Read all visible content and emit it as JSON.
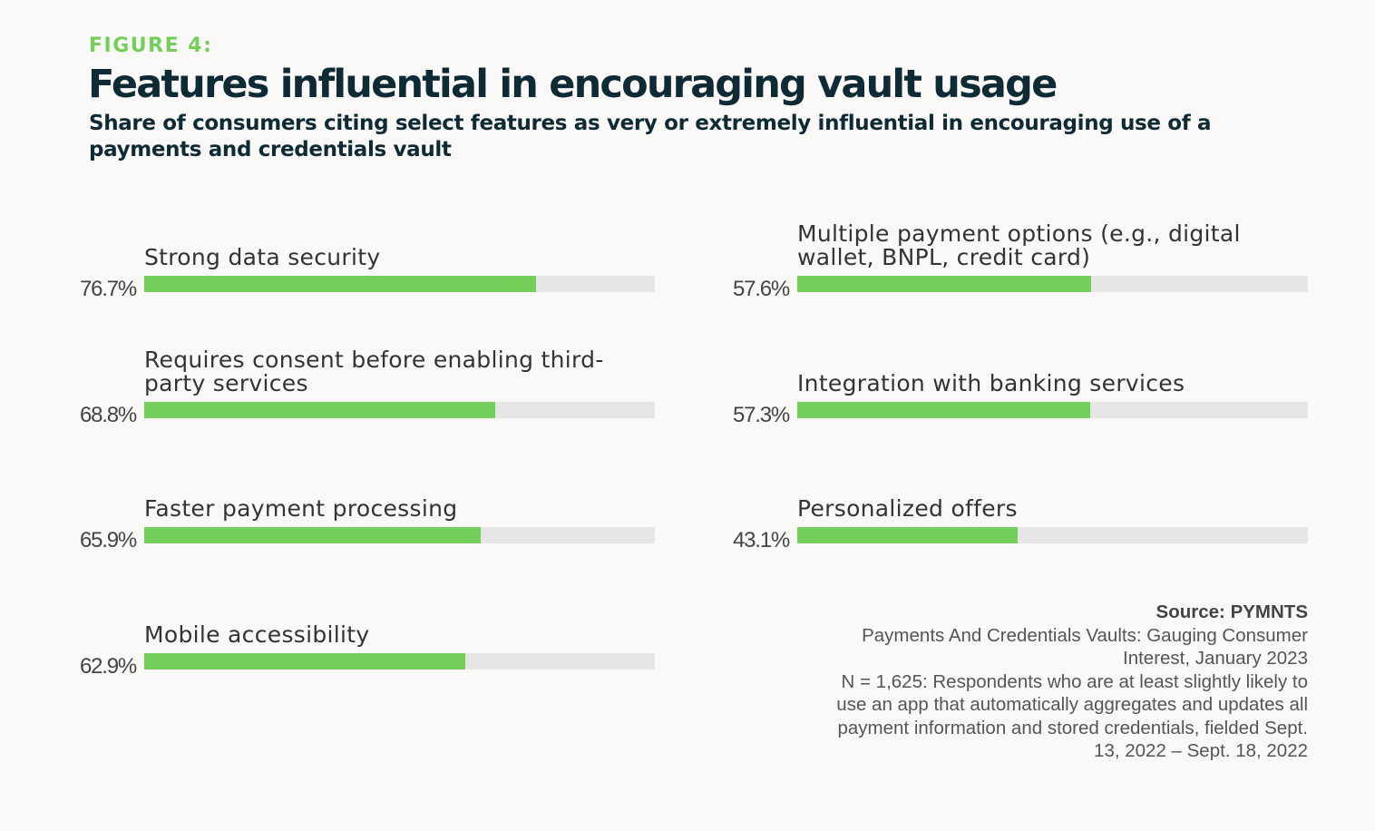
{
  "figure_label": "FIGURE 4:",
  "title": "Features influential in encouraging vault usage",
  "subtitle": "Share of consumers citing select features as very or extremely influential in encouraging use of a payments and credentials vault",
  "colors": {
    "bar": "#74cf5a",
    "track": "#e6e6e6",
    "title": "#0e2a35",
    "figure_label": "#74cf5a"
  },
  "chart_data": {
    "type": "bar",
    "orientation": "horizontal",
    "xlim": [
      0,
      100
    ],
    "unit": "%",
    "categories": [
      "Strong data security",
      "Requires consent before enabling third-party services",
      "Faster payment processing",
      "Mobile accessibility",
      "Multiple payment options (e.g., digital wallet, BNPL, credit card)",
      "Integration with banking services",
      "Personalized offers"
    ],
    "values": [
      76.7,
      68.8,
      65.9,
      62.9,
      57.6,
      57.3,
      43.1
    ],
    "value_labels": [
      "76.7%",
      "68.8%",
      "65.9%",
      "62.9%",
      "57.6%",
      "57.3%",
      "43.1%"
    ]
  },
  "source": {
    "title": "Source: PYMNTS",
    "lines": [
      "Payments And Credentials Vaults: Gauging Consumer",
      "Interest, January 2023",
      "N = 1,625: Respondents who are at least slightly likely to",
      "use an app that automatically aggregates and updates all",
      "payment information and stored credentials, fielded Sept.",
      "13, 2022 – Sept. 18, 2022"
    ]
  }
}
